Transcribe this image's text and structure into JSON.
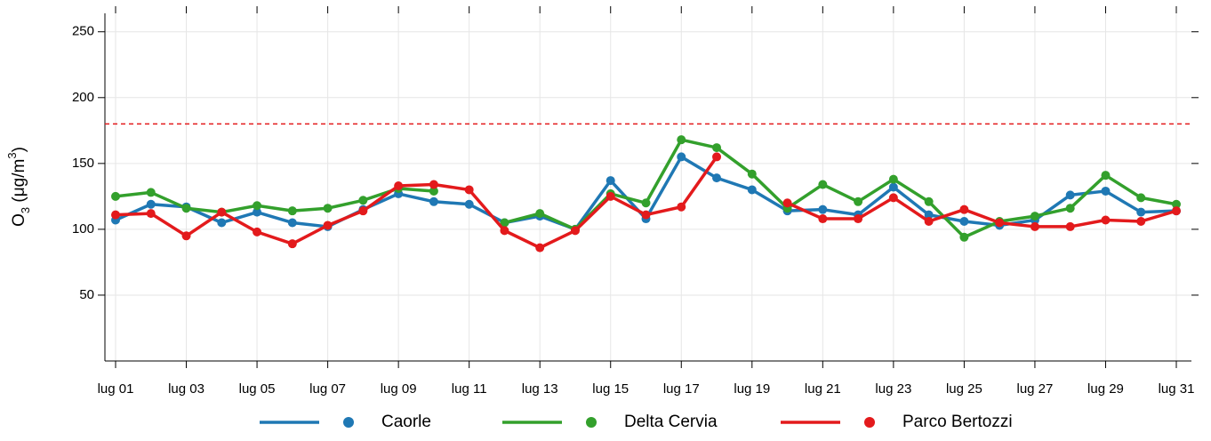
{
  "chart_data": {
    "type": "line",
    "categories": [
      "lug 01",
      null,
      "lug 03",
      null,
      "lug 05",
      null,
      "lug 07",
      null,
      "lug 09",
      null,
      "lug 11",
      null,
      "lug 13",
      null,
      "lug 15",
      null,
      "lug 17",
      null,
      "lug 19",
      null,
      "lug 21",
      null,
      "lug 23",
      null,
      "lug 25",
      null,
      "lug 27",
      null,
      "lug 29",
      null,
      "lug 31"
    ],
    "y_label": [
      "O",
      "3",
      " (μg/m",
      "3",
      ")"
    ],
    "ylim": [
      0,
      264
    ],
    "yticks": [
      50,
      100,
      150,
      200,
      250
    ],
    "grid": true,
    "threshold": {
      "value": 180,
      "color": "#e31a1c"
    },
    "legend": "bottom",
    "series": [
      {
        "name": "Caorle",
        "color": "#1f78b4",
        "values": [
          107,
          119,
          117,
          105,
          113,
          105,
          102,
          115,
          127,
          121,
          119,
          105,
          110,
          100,
          137,
          108,
          155,
          139,
          130,
          114,
          115,
          111,
          132,
          111,
          106,
          103,
          107,
          126,
          129,
          113,
          114
        ]
      },
      {
        "name": "Delta Cervia",
        "color": "#33a02c",
        "values": [
          125,
          128,
          116,
          113,
          118,
          114,
          116,
          122,
          131,
          129,
          null,
          105,
          112,
          100,
          127,
          120,
          168,
          162,
          142,
          116,
          134,
          121,
          138,
          121,
          94,
          106,
          110,
          116,
          141,
          124,
          119
        ]
      },
      {
        "name": "Parco Bertozzi",
        "color": "#e31a1c",
        "values": [
          111,
          112,
          95,
          113,
          98,
          89,
          103,
          114,
          133,
          134,
          130,
          99,
          86,
          99,
          125,
          111,
          117,
          155,
          null,
          120,
          108,
          108,
          124,
          106,
          115,
          105,
          102,
          102,
          107,
          106,
          114
        ]
      }
    ]
  }
}
